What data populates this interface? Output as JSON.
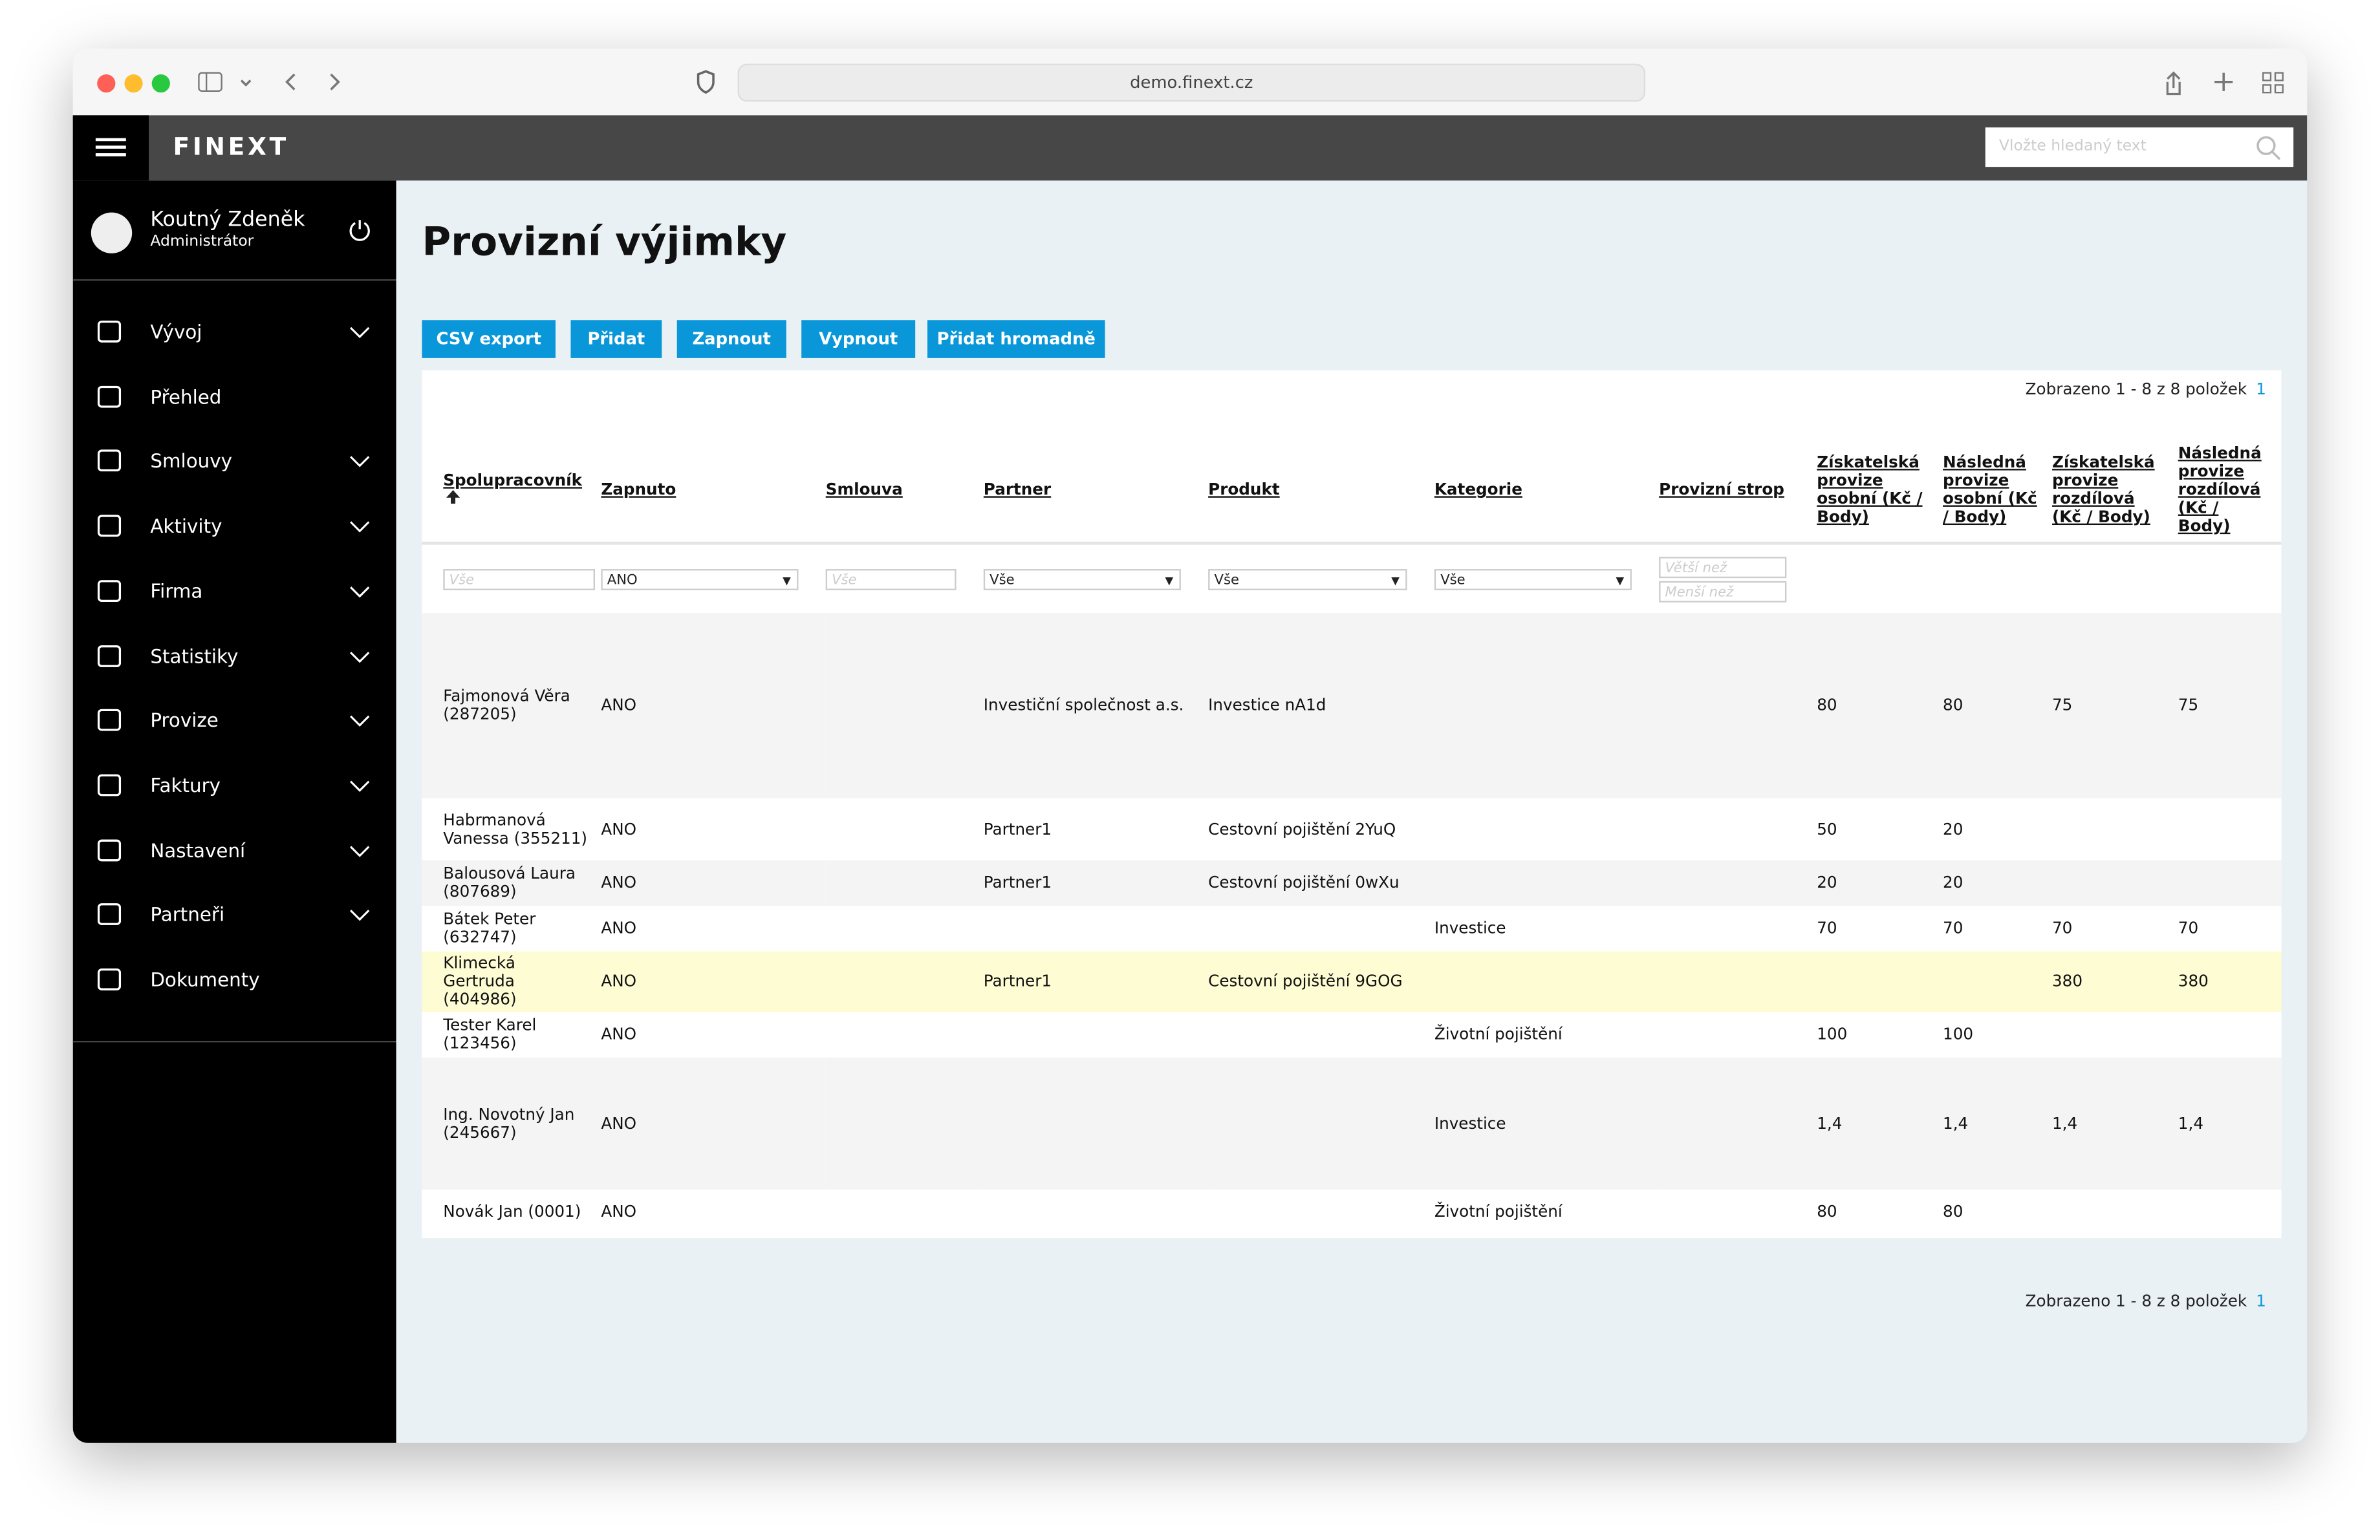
{
  "browser": {
    "url": "demo.finext.cz"
  },
  "header": {
    "logo": "FINEXT",
    "search_placeholder": "Vložte hledaný text"
  },
  "user": {
    "name": "Koutný Zdeněk",
    "role": "Administrátor"
  },
  "nav": [
    {
      "label": "Vývoj",
      "expandable": true
    },
    {
      "label": "Přehled",
      "expandable": false
    },
    {
      "label": "Smlouvy",
      "expandable": true
    },
    {
      "label": "Aktivity",
      "expandable": true
    },
    {
      "label": "Firma",
      "expandable": true
    },
    {
      "label": "Statistiky",
      "expandable": true
    },
    {
      "label": "Provize",
      "expandable": true
    },
    {
      "label": "Faktury",
      "expandable": true
    },
    {
      "label": "Nastavení",
      "expandable": true
    },
    {
      "label": "Partneři",
      "expandable": true
    },
    {
      "label": "Dokumenty",
      "expandable": false
    }
  ],
  "title": "Provizní výjimky",
  "buttons": [
    "CSV export",
    "Přidat",
    "Zapnout",
    "Vypnout",
    "Přidat hromadně"
  ],
  "pagination": {
    "summary": "Zobrazeno 1 - 8 z 8 položek",
    "page": 1
  },
  "table": {
    "columns": [
      "Spolupracovník",
      "Zapnuto",
      "Smlouva",
      "Partner",
      "Produkt",
      "Kategorie",
      "Provizní strop",
      "Získatelská provize osobní (Kč / Body)",
      "Následná provize osobní (Kč / Body)",
      "Získatelská provize rozdílová (Kč / Body)",
      "Následná provize rozdílová (Kč / Body)"
    ],
    "filters": [
      {
        "kind": "input",
        "text": "Vše"
      },
      {
        "kind": "select",
        "text": "ANO"
      },
      {
        "kind": "input",
        "text": "Vše"
      },
      {
        "kind": "select",
        "text": "Vše"
      },
      {
        "kind": "select",
        "text": "Vše"
      },
      {
        "kind": "select",
        "text": "Vše"
      },
      {
        "kind": "range",
        "texts": [
          "Větší než",
          "Menší než"
        ]
      },
      null,
      null,
      null,
      null
    ],
    "highlight_row": 4,
    "rows": [
      [
        "Fajmonová Věra (287205)",
        "ANO",
        null,
        "Investiční společnost a.s.",
        "Investice nA1d",
        null,
        null,
        80,
        80,
        75,
        75
      ],
      [
        "Habrmanová Vanessa (355211)",
        "ANO",
        null,
        "Partner1",
        "Cestovní pojištění 2YuQ",
        null,
        null,
        50,
        20,
        null,
        null
      ],
      [
        "Balousová Laura (807689)",
        "ANO",
        null,
        "Partner1",
        "Cestovní pojištění 0wXu",
        null,
        null,
        20,
        20,
        null,
        null
      ],
      [
        "Bátek Peter (632747)",
        "ANO",
        null,
        null,
        null,
        "Investice",
        null,
        70,
        70,
        70,
        70
      ],
      [
        "Klimecká Gertruda (404986)",
        "ANO",
        null,
        "Partner1",
        "Cestovní pojištění 9GOG",
        null,
        null,
        null,
        null,
        380,
        380
      ],
      [
        "Tester Karel (123456)",
        "ANO",
        null,
        null,
        null,
        "Životní pojištění",
        null,
        100,
        100,
        null,
        null
      ],
      [
        "Ing. Novotný Jan (245667)",
        "ANO",
        null,
        null,
        null,
        "Investice",
        null,
        "1,4",
        "1,4",
        "1,4",
        "1,4"
      ],
      [
        "Novák Jan (0001)",
        "ANO",
        null,
        null,
        null,
        "Životní pojištění",
        null,
        80,
        80,
        null,
        null
      ]
    ]
  }
}
